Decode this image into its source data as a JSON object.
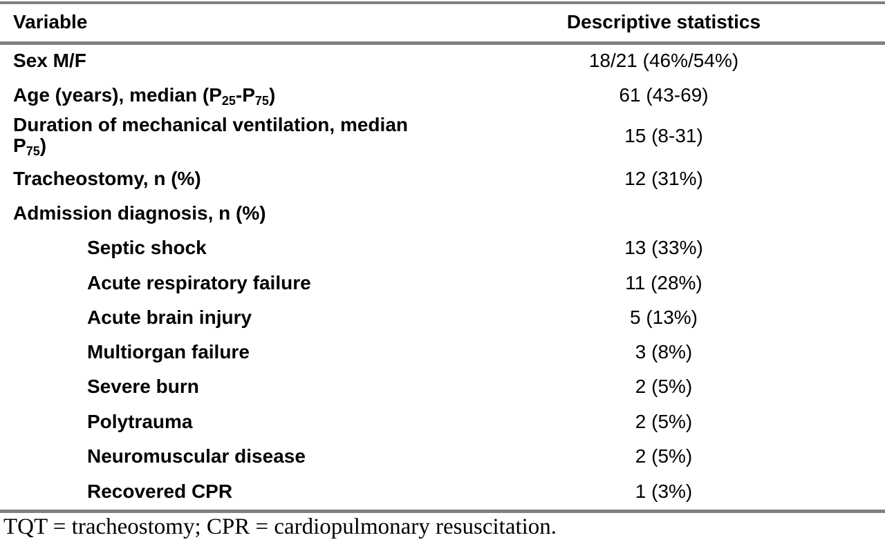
{
  "table": {
    "headers": {
      "variable": "Variable",
      "statistics": "Descriptive statistics"
    },
    "rows": [
      {
        "label": "Sex M/F",
        "value": "18/21 (46%/54%)"
      },
      {
        "label_parts": [
          "Age (years), median (P",
          "25",
          "-P",
          "75",
          ")"
        ],
        "value": "61 (43-69)"
      },
      {
        "label_parts": [
          "Duration of mechanical ventilation, median",
          "P",
          "75",
          ")"
        ],
        "value": "15 (8-31)"
      },
      {
        "label": "Tracheostomy, n (%)",
        "value": "12 (31%)"
      },
      {
        "label": "Admission diagnosis, n (%)",
        "value": ""
      }
    ],
    "diagnoses": [
      {
        "label": "Septic shock",
        "value": "13 (33%)"
      },
      {
        "label": "Acute respiratory failure",
        "value": "11 (28%)"
      },
      {
        "label": "Acute brain injury",
        "value": "5 (13%)"
      },
      {
        "label": "Multiorgan failure",
        "value": "3 (8%)"
      },
      {
        "label": "Severe burn",
        "value": "2 (5%)"
      },
      {
        "label": "Polytrauma",
        "value": "2 (5%)"
      },
      {
        "label": "Neuromuscular disease",
        "value": "2 (5%)"
      },
      {
        "label": "Recovered CPR",
        "value": "1 (3%)"
      }
    ]
  },
  "footnote": "TQT = tracheostomy; CPR = cardiopulmonary resuscitation.",
  "colors": {
    "rule": "#808080",
    "text": "#000000"
  }
}
